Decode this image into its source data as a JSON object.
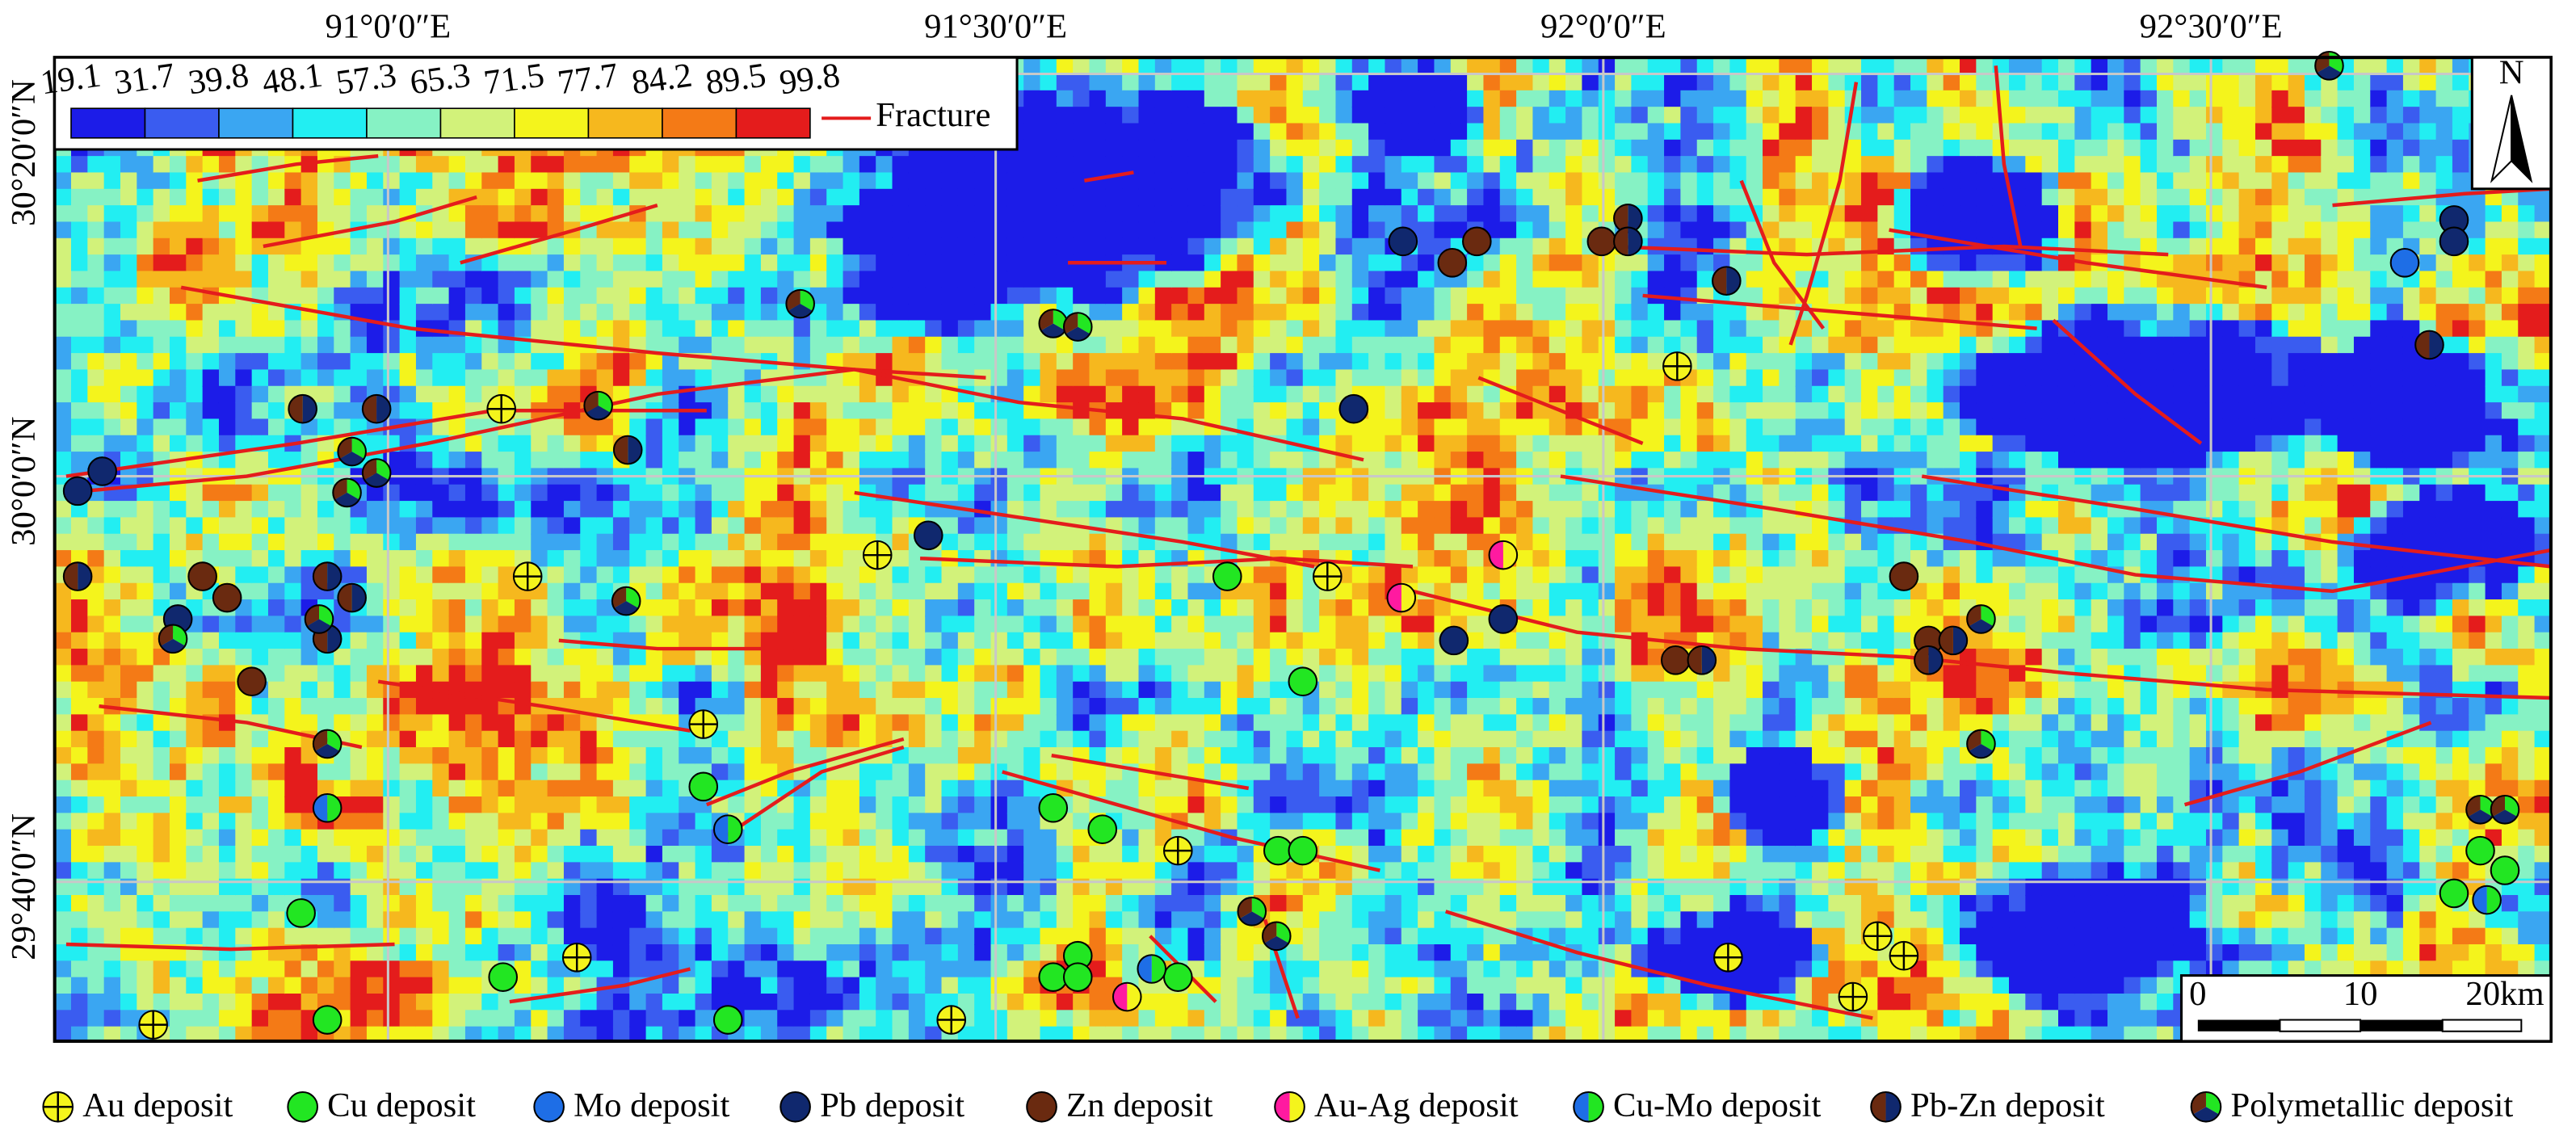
{
  "map": {
    "x_labels": [
      "91°0′0″E",
      "91°30′0″E",
      "92°0′0″E",
      "92°30′0″E"
    ],
    "y_labels": [
      "30°20′0″N",
      "30°0′0″N",
      "29°40′0″N"
    ]
  },
  "color_scale": {
    "breaks": [
      19.1,
      31.7,
      39.8,
      48.1,
      57.3,
      65.3,
      71.5,
      77.7,
      84.2,
      89.5,
      99.8
    ],
    "colors": [
      "#1c1ce8",
      "#3a5cf0",
      "#3aa6f2",
      "#22eef2",
      "#86f2c4",
      "#d2f27a",
      "#f4f41c",
      "#f6b81e",
      "#f47a16",
      "#e41c1c"
    ]
  },
  "fracture_label": "Fracture",
  "north": "N",
  "scale_bar": [
    "0",
    "10",
    "20km"
  ],
  "legend": [
    {
      "label": "Au deposit",
      "colors": [
        "#f4f41c"
      ]
    },
    {
      "label": "Cu deposit",
      "colors": [
        "#22e622"
      ]
    },
    {
      "label": "Mo deposit",
      "colors": [
        "#1e6ee6"
      ]
    },
    {
      "label": "Pb deposit",
      "colors": [
        "#10286e"
      ]
    },
    {
      "label": "Zn deposit",
      "colors": [
        "#6a2a10"
      ]
    },
    {
      "label": "Au-Ag deposit",
      "colors": [
        "#f4f41c",
        "#ff1aa0"
      ]
    },
    {
      "label": "Cu-Mo deposit",
      "colors": [
        "#22e622",
        "#1e6ee6"
      ]
    },
    {
      "label": "Pb-Zn deposit",
      "colors": [
        "#10286e",
        "#6a2a10"
      ]
    },
    {
      "label": "Polymetallic deposit",
      "colors": [
        "#22e622",
        "#10286e",
        "#6a2a10"
      ]
    }
  ]
}
